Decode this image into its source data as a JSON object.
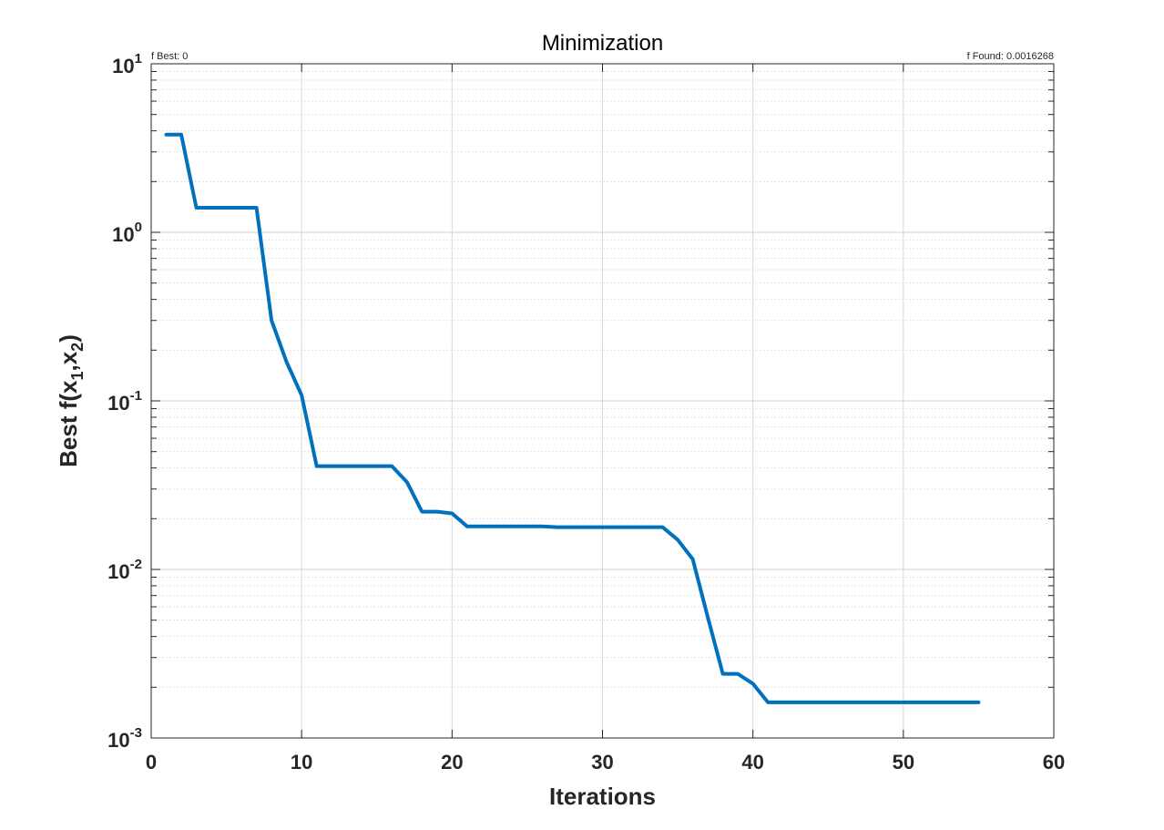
{
  "chart_data": {
    "type": "line",
    "title": "Minimization",
    "left_note": "f Best: 0",
    "right_note": "f Found: 0.0016268",
    "xlabel": "Iterations",
    "ylabel": {
      "prefix": "Best f(x",
      "sub1": "1",
      "mid": ",x",
      "sub2": "2",
      "suffix": ")"
    },
    "xlim": [
      0,
      60
    ],
    "ylim": [
      0.001,
      10
    ],
    "yscale": "log",
    "grid": true,
    "minor_grid": true,
    "x_ticks": [
      "0",
      "10",
      "20",
      "30",
      "40",
      "50",
      "60"
    ],
    "y_ticks": [
      {
        "base": "10",
        "exp": "-3"
      },
      {
        "base": "10",
        "exp": "-2"
      },
      {
        "base": "10",
        "exp": "-1"
      },
      {
        "base": "10",
        "exp": "0"
      },
      {
        "base": "10",
        "exp": "1"
      }
    ],
    "line_color": "#0072BD",
    "series": [
      {
        "x": [
          1,
          2,
          3,
          4,
          5,
          6,
          7,
          8,
          9,
          10,
          11,
          12,
          13,
          14,
          15,
          16,
          17,
          18,
          19,
          20,
          21,
          22,
          23,
          24,
          25,
          26,
          27,
          28,
          29,
          30,
          31,
          32,
          33,
          34,
          35,
          36,
          37,
          38,
          39,
          40,
          41,
          42,
          43,
          44,
          45,
          46,
          47,
          48,
          49,
          50,
          51,
          52,
          53,
          54,
          55
        ],
        "values": [
          3.8,
          3.8,
          1.4,
          1.4,
          1.4,
          1.4,
          1.4,
          0.3,
          0.17,
          0.108,
          0.041,
          0.041,
          0.041,
          0.041,
          0.041,
          0.041,
          0.033,
          0.022,
          0.022,
          0.0215,
          0.018,
          0.018,
          0.018,
          0.018,
          0.018,
          0.018,
          0.0178,
          0.0178,
          0.0178,
          0.0178,
          0.0178,
          0.0178,
          0.0178,
          0.0178,
          0.015,
          0.0115,
          0.0052,
          0.0024,
          0.0024,
          0.0021,
          0.0016268,
          0.0016268,
          0.0016268,
          0.0016268,
          0.0016268,
          0.0016268,
          0.0016268,
          0.0016268,
          0.0016268,
          0.0016268,
          0.0016268,
          0.0016268,
          0.0016268,
          0.0016268,
          0.0016268
        ]
      }
    ]
  }
}
